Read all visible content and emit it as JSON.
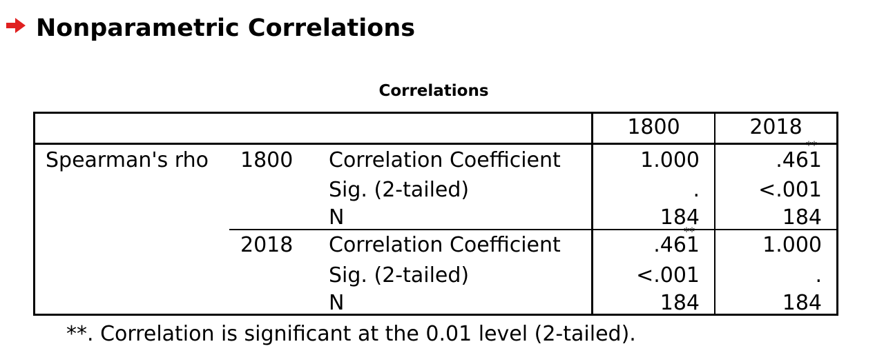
{
  "page": {
    "title": "Nonparametric Correlations",
    "arrow_color": "#e02020"
  },
  "table": {
    "title": "Correlations",
    "col_headers": [
      "1800",
      "2018"
    ],
    "row_group": "Spearman's rho",
    "rows": [
      {
        "var": "1800",
        "stats": [
          {
            "label": "Correlation Coefficient",
            "v1800": "1.000",
            "v1800_sup": "",
            "v2018": ".461",
            "v2018_sup": "**"
          },
          {
            "label": "Sig. (2-tailed)",
            "v1800": ".",
            "v1800_sup": "",
            "v2018": "<.001",
            "v2018_sup": ""
          },
          {
            "label": "N",
            "v1800": "184",
            "v1800_sup": "",
            "v2018": "184",
            "v2018_sup": ""
          }
        ]
      },
      {
        "var": "2018",
        "stats": [
          {
            "label": "Correlation Coefficient",
            "v1800": ".461",
            "v1800_sup": "**",
            "v2018": "1.000",
            "v2018_sup": ""
          },
          {
            "label": "Sig. (2-tailed)",
            "v1800": "<.001",
            "v1800_sup": "",
            "v2018": ".",
            "v2018_sup": ""
          },
          {
            "label": "N",
            "v1800": "184",
            "v1800_sup": "",
            "v2018": "184",
            "v2018_sup": ""
          }
        ]
      }
    ],
    "footnote": "**. Correlation is significant at the 0.01 level (2-tailed)."
  }
}
